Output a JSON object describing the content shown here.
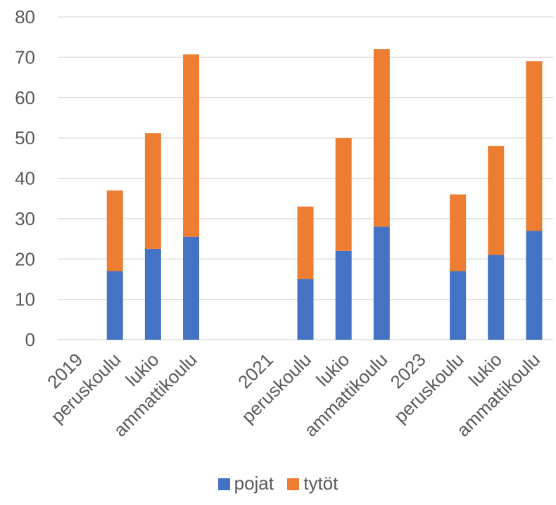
{
  "chart_data": {
    "type": "bar",
    "stacked": true,
    "categories": [
      "2019",
      "peruskoulu",
      "lukio",
      "ammattikoulu",
      "",
      "2021",
      "peruskoulu",
      "lukio",
      "ammattikoulu",
      "2023",
      "peruskoulu",
      "lukio",
      "ammattikoulu"
    ],
    "series": [
      {
        "name": "pojat",
        "color": "#4472C4",
        "values": [
          null,
          17,
          22.5,
          25.5,
          null,
          null,
          15,
          22,
          28,
          null,
          17,
          21,
          27
        ]
      },
      {
        "name": "tytöt",
        "color": "#ED7D31",
        "values": [
          null,
          20,
          28.7,
          45.2,
          null,
          null,
          18,
          28,
          44,
          null,
          19,
          27,
          42
        ]
      }
    ],
    "ylim": [
      0,
      80
    ],
    "yticks": [
      "0",
      "10",
      "20",
      "30",
      "40",
      "50",
      "60",
      "70",
      "80"
    ],
    "grid": true,
    "gridColor": "#D9D9D9",
    "legend_position": "bottom"
  }
}
